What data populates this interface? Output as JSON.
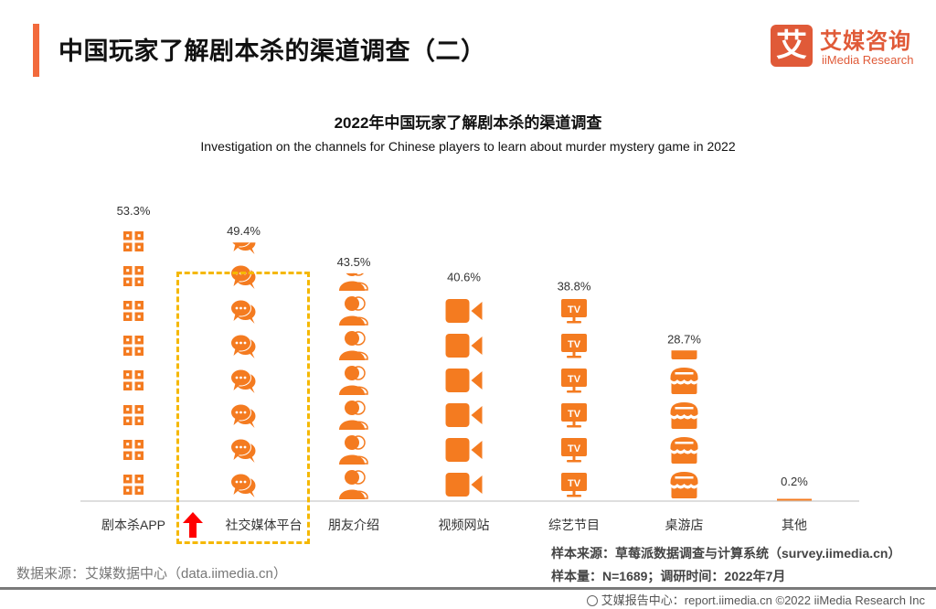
{
  "header": {
    "title": "中国玩家了解剧本杀的渠道调查（二）",
    "accent_color": "#f26a3c"
  },
  "logo": {
    "mark": "艾",
    "name_cn": "艾媒咨询",
    "name_en": "iiMedia Research",
    "color": "#e05a38"
  },
  "chart_data": {
    "type": "bar",
    "style": "pictograph",
    "title": "2022年中国玩家了解剧本杀的渠道调查",
    "subtitle": "Investigation on the channels for Chinese players to learn about murder mystery game in 2022",
    "xlabel": "",
    "ylabel": "",
    "unit": "%",
    "categories": [
      "剧本杀APP",
      "社交媒体平台",
      "朋友介绍",
      "视频网站",
      "综艺节目",
      "桌游店",
      "其他"
    ],
    "values": [
      53.3,
      49.4,
      43.5,
      40.6,
      38.8,
      28.7,
      0.2
    ],
    "value_labels": [
      "53.3%",
      "49.4%",
      "43.5%",
      "40.6%",
      "38.8%",
      "28.7%",
      "0.2%"
    ],
    "icons": [
      "app-grid-icon",
      "chat-bubble-icon",
      "friends-icon",
      "video-camera-icon",
      "tv-icon",
      "shop-icon",
      "line"
    ],
    "ylim": [
      0,
      53.3
    ],
    "grid": false,
    "legend": "none",
    "highlighted_category": "社交媒体平台",
    "color": "#f47b20",
    "highlight_color": "#f5b800",
    "arrow_color": "#ff0000"
  },
  "sources": {
    "data_source": "数据来源：艾媒数据中心（data.iimedia.cn）",
    "sample_source": "样本来源：草莓派数据调查与计算系统（survey.iimedia.cn）",
    "sample_size": "样本量：N=1689；调研时间：2022年7月"
  },
  "footer": {
    "text": "艾媒报告中心：report.iimedia.cn   ©2022  iiMedia Research  Inc"
  }
}
